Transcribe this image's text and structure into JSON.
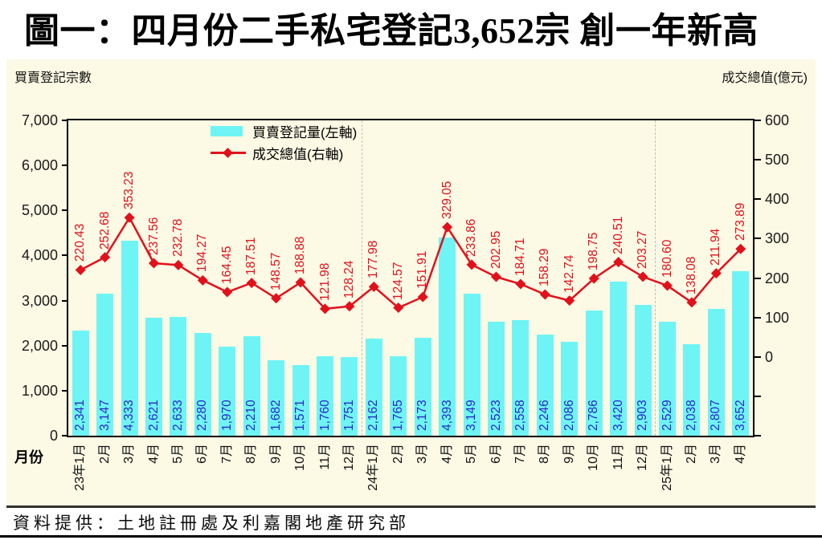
{
  "title": "圖一：四月份二手私宅登記3,652宗  創一年新高",
  "panel": {
    "left_axis_title": "買賣登記宗數",
    "right_axis_title": "成交總值(億元)",
    "x_axis_title": "月份"
  },
  "legend": {
    "bar_label": "買賣登記量(左軸)",
    "line_label": "成交總值(右軸)"
  },
  "footer": "資料提供：土地註冊處及利嘉閣地產研究部",
  "colors": {
    "bar_fill": "#6EF4F4",
    "bar_value_text": "#2929CC",
    "line_stroke": "#E1111C",
    "line_value_text": "#E1111C",
    "panel_background": "#FCF9E4",
    "frame": "#000000",
    "year_separator": "#c2c2b6"
  },
  "chart_data": {
    "type": "bar",
    "title": "圖一：四月份二手私宅登記3,652宗  創一年新高",
    "xlabel": "月份",
    "ylabel_left": "買賣登記宗數",
    "ylabel_right": "成交總值(億元)",
    "categories": [
      "23年1月",
      "2月",
      "3月",
      "4月",
      "5月",
      "6月",
      "7月",
      "8月",
      "9月",
      "10月",
      "11月",
      "12月",
      "24年1月",
      "2月",
      "3月",
      "4月",
      "5月",
      "6月",
      "7月",
      "8月",
      "9月",
      "10月",
      "11月",
      "12月",
      "25年1月",
      "2月",
      "3月",
      "4月"
    ],
    "series": [
      {
        "name": "買賣登記量(左軸)",
        "type": "bar",
        "axis": "left",
        "values": [
          2341,
          3147,
          4333,
          2621,
          2633,
          2280,
          1970,
          2210,
          1682,
          1571,
          1760,
          1751,
          2162,
          1765,
          2173,
          4393,
          3149,
          2523,
          2558,
          2246,
          2086,
          2786,
          3420,
          2903,
          2529,
          2038,
          2807,
          3652
        ]
      },
      {
        "name": "成交總值(右軸)",
        "type": "line",
        "axis": "right",
        "values": [
          220.43,
          252.68,
          353.23,
          237.56,
          232.78,
          194.27,
          164.45,
          187.51,
          148.57,
          188.88,
          121.98,
          128.24,
          177.98,
          124.57,
          151.91,
          329.05,
          233.86,
          202.95,
          184.71,
          158.29,
          142.74,
          198.75,
          240.51,
          203.27,
          180.6,
          138.08,
          211.94,
          273.89
        ]
      }
    ],
    "left_axis": {
      "min": 0,
      "max": 7000,
      "step": 1000
    },
    "right_axis": {
      "min": -200,
      "max": 600,
      "step": 100,
      "labeled_range": [
        0,
        600
      ]
    },
    "legend_position": "top-left-inside",
    "grid": false,
    "year_separators_after_index": [
      11,
      23
    ]
  }
}
